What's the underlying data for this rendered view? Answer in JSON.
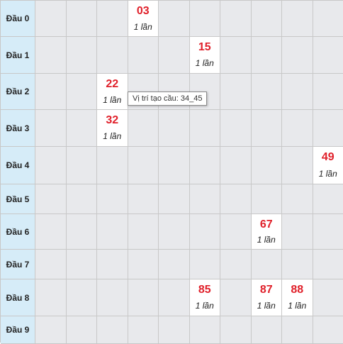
{
  "rows": [
    {
      "label": "Đầu 0",
      "cells": [
        {
          "col": 3,
          "value": "03",
          "count": "1 lần"
        }
      ]
    },
    {
      "label": "Đầu 1",
      "cells": [
        {
          "col": 5,
          "value": "15",
          "count": "1 lần"
        }
      ]
    },
    {
      "label": "Đầu 2",
      "cells": [
        {
          "col": 2,
          "value": "22",
          "count": "1 lần"
        }
      ]
    },
    {
      "label": "Đầu 3",
      "cells": [
        {
          "col": 2,
          "value": "32",
          "count": "1 lần"
        }
      ]
    },
    {
      "label": "Đầu 4",
      "cells": [
        {
          "col": 9,
          "value": "49",
          "count": "1 lần"
        }
      ]
    },
    {
      "label": "Đầu 5",
      "cells": []
    },
    {
      "label": "Đầu 6",
      "cells": [
        {
          "col": 7,
          "value": "67",
          "count": "1 lần"
        }
      ]
    },
    {
      "label": "Đầu 7",
      "cells": []
    },
    {
      "label": "Đầu 8",
      "cells": [
        {
          "col": 5,
          "value": "85",
          "count": "1 lần"
        },
        {
          "col": 7,
          "value": "87",
          "count": "1 lần"
        },
        {
          "col": 8,
          "value": "88",
          "count": "1 lần"
        }
      ]
    },
    {
      "label": "Đầu 9",
      "cells": []
    }
  ],
  "tooltip": {
    "text": "Vị trí tạo cầu: 34_45"
  },
  "colors": {
    "header_bg": "#d6ecf8",
    "empty_cell_bg": "#e8e9ec",
    "filled_cell_bg": "#ffffff",
    "number_color": "#e0202a",
    "grid_line": "#c8c8c8"
  }
}
